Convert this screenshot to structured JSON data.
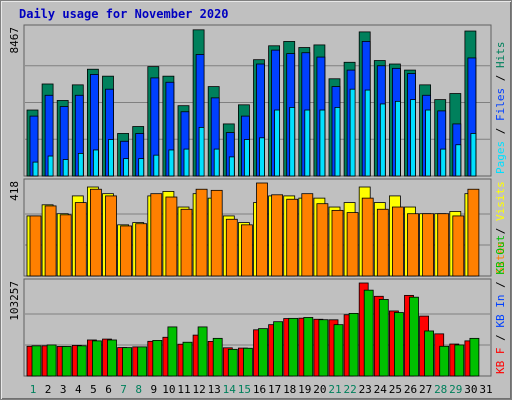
{
  "title": "Daily usage for November 2020",
  "colors": {
    "title": "#0000c0",
    "hits": "#00805c",
    "files": "#0040ff",
    "pages": "#00e0ff",
    "visits": "#ffff00",
    "sites": "#ff8000",
    "kbin": "#0040ff",
    "kbout": "#00c000",
    "kbf": "#ff0000",
    "weekend": "#00805c",
    "weekday": "#0000c0",
    "panel": "#c0c0c0",
    "grid": "#808080"
  },
  "chart_data": [
    {
      "type": "bar",
      "ymax_label": "8467",
      "ymax": 8467,
      "legend": [
        "Pages",
        "Files",
        "Hits"
      ],
      "categories": [
        "1",
        "2",
        "3",
        "4",
        "5",
        "6",
        "7",
        "8",
        "9",
        "10",
        "11",
        "12",
        "13",
        "14",
        "15",
        "16",
        "17",
        "18",
        "19",
        "20",
        "21",
        "22",
        "23",
        "24",
        "25",
        "26",
        "27",
        "28",
        "29",
        "30",
        "31"
      ],
      "series": [
        {
          "name": "Hits",
          "values": [
            3800,
            5300,
            4350,
            5250,
            6150,
            5750,
            2450,
            2850,
            6300,
            5750,
            4050,
            8420,
            5150,
            3000,
            4100,
            6700,
            7500,
            7750,
            7400,
            7550,
            5600,
            6550,
            8300,
            6650,
            6450,
            6100,
            5250,
            4400,
            4750,
            8350,
            0
          ]
        },
        {
          "name": "Files",
          "values": [
            3450,
            4650,
            4000,
            4650,
            5850,
            5000,
            2000,
            2450,
            5650,
            5400,
            3700,
            7000,
            4500,
            2500,
            3450,
            6450,
            7250,
            7050,
            7100,
            6850,
            5150,
            6100,
            7750,
            6350,
            6200,
            5900,
            4650,
            3750,
            3000,
            6800,
            0
          ]
        },
        {
          "name": "Pages",
          "values": [
            800,
            1150,
            950,
            1300,
            1500,
            2100,
            1000,
            1000,
            1200,
            1500,
            1550,
            2800,
            1550,
            1100,
            2100,
            2200,
            3800,
            3950,
            3800,
            3800,
            3950,
            5000,
            4950,
            4150,
            4300,
            4400,
            3800,
            1550,
            1800,
            2450,
            0
          ]
        }
      ]
    },
    {
      "type": "bar",
      "ymax_label": "418",
      "ymax": 418,
      "legend": [
        "Sites",
        "Visits"
      ],
      "categories": [
        "1",
        "2",
        "3",
        "4",
        "5",
        "6",
        "7",
        "8",
        "9",
        "10",
        "11",
        "12",
        "13",
        "14",
        "15",
        "16",
        "17",
        "18",
        "19",
        "20",
        "21",
        "22",
        "23",
        "24",
        "25",
        "26",
        "27",
        "28",
        "29",
        "30",
        "31"
      ],
      "series": [
        {
          "name": "Visits",
          "values": [
            270,
            320,
            280,
            360,
            400,
            370,
            230,
            240,
            360,
            380,
            310,
            370,
            350,
            270,
            240,
            330,
            360,
            360,
            350,
            350,
            310,
            330,
            400,
            330,
            360,
            310,
            280,
            280,
            290,
            370,
            0
          ]
        },
        {
          "name": "Sites",
          "values": [
            270,
            315,
            275,
            330,
            390,
            360,
            225,
            235,
            370,
            355,
            300,
            390,
            385,
            255,
            230,
            418,
            365,
            345,
            370,
            325,
            295,
            285,
            350,
            300,
            310,
            280,
            280,
            280,
            270,
            390,
            0
          ]
        }
      ]
    },
    {
      "type": "bar",
      "ymax_label": "103257",
      "ymax": 103257,
      "legend": [
        "KB F",
        "KB In",
        "KB Out"
      ],
      "categories": [
        "1",
        "2",
        "3",
        "4",
        "5",
        "6",
        "7",
        "8",
        "9",
        "10",
        "11",
        "12",
        "13",
        "14",
        "15",
        "16",
        "17",
        "18",
        "19",
        "20",
        "21",
        "22",
        "23",
        "24",
        "25",
        "26",
        "27",
        "28",
        "29",
        "30",
        "31"
      ],
      "series": [
        {
          "name": "KB F",
          "values": [
            33000,
            33500,
            32800,
            34000,
            40000,
            41000,
            31600,
            32300,
            38500,
            43000,
            35300,
            45400,
            38400,
            31300,
            31000,
            51300,
            57000,
            63800,
            64200,
            63000,
            62400,
            68000,
            103257,
            88500,
            72200,
            89500,
            66500,
            46800,
            35500,
            39000,
            0
          ]
        },
        {
          "name": "KB Out",
          "values": [
            33500,
            34500,
            32800,
            33500,
            39000,
            40000,
            31500,
            32300,
            39500,
            54500,
            37500,
            54500,
            41800,
            29600,
            30800,
            52600,
            60300,
            64000,
            65000,
            62500,
            57000,
            69500,
            95300,
            85000,
            70500,
            87500,
            50000,
            33000,
            34500,
            41800,
            0
          ]
        }
      ]
    }
  ]
}
